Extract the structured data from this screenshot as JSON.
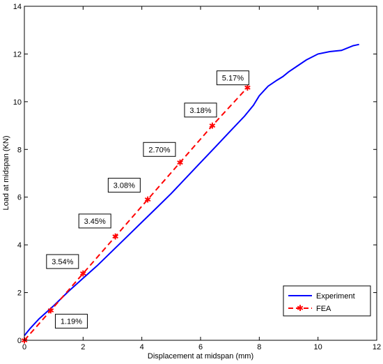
{
  "chart_data": {
    "type": "line",
    "title": "",
    "xlabel": "Displacement at midspan (mm)",
    "ylabel": "Load at midspan (KN)",
    "xlim": [
      0,
      12
    ],
    "ylim": [
      0,
      14
    ],
    "xticks": [
      0,
      2,
      4,
      6,
      8,
      10,
      12
    ],
    "yticks": [
      0,
      2,
      4,
      6,
      8,
      10,
      12,
      14
    ],
    "grid": false,
    "legend_position": "bottom-right",
    "series": [
      {
        "name": "Experiment",
        "color": "#0000ff",
        "style": "solid",
        "marker": "none",
        "x": [
          0,
          0.2,
          0.5,
          1.0,
          1.5,
          2.0,
          2.5,
          3.0,
          3.5,
          4.0,
          4.5,
          5.0,
          5.5,
          6.0,
          6.5,
          7.0,
          7.5,
          7.8,
          8.0,
          8.3,
          8.6,
          8.8,
          9.0,
          9.3,
          9.6,
          10.0,
          10.4,
          10.8,
          11.2,
          11.4
        ],
        "y": [
          0.2,
          0.5,
          0.9,
          1.45,
          2.05,
          2.6,
          3.15,
          3.75,
          4.35,
          4.95,
          5.55,
          6.15,
          6.8,
          7.45,
          8.1,
          8.75,
          9.4,
          9.85,
          10.25,
          10.65,
          10.9,
          11.05,
          11.25,
          11.5,
          11.75,
          12.0,
          12.1,
          12.15,
          12.35,
          12.4
        ]
      },
      {
        "name": "FEA",
        "color": "#ff0000",
        "style": "dashed",
        "marker": "star",
        "x": [
          0,
          0.9,
          2.0,
          3.1,
          4.2,
          5.3,
          6.4,
          7.6
        ],
        "y": [
          0,
          1.25,
          2.8,
          4.35,
          5.9,
          7.45,
          9.0,
          10.6
        ]
      }
    ],
    "annotations": [
      {
        "text": "1.19%",
        "x": 1.6,
        "y": 0.8
      },
      {
        "text": "3.54%",
        "x": 1.3,
        "y": 3.3
      },
      {
        "text": "3.45%",
        "x": 2.4,
        "y": 5.0
      },
      {
        "text": "3.08%",
        "x": 3.4,
        "y": 6.5
      },
      {
        "text": "2.70%",
        "x": 4.6,
        "y": 8.0
      },
      {
        "text": "3.18%",
        "x": 6.0,
        "y": 9.65
      },
      {
        "text": "5.17%",
        "x": 7.1,
        "y": 11.0
      }
    ]
  }
}
